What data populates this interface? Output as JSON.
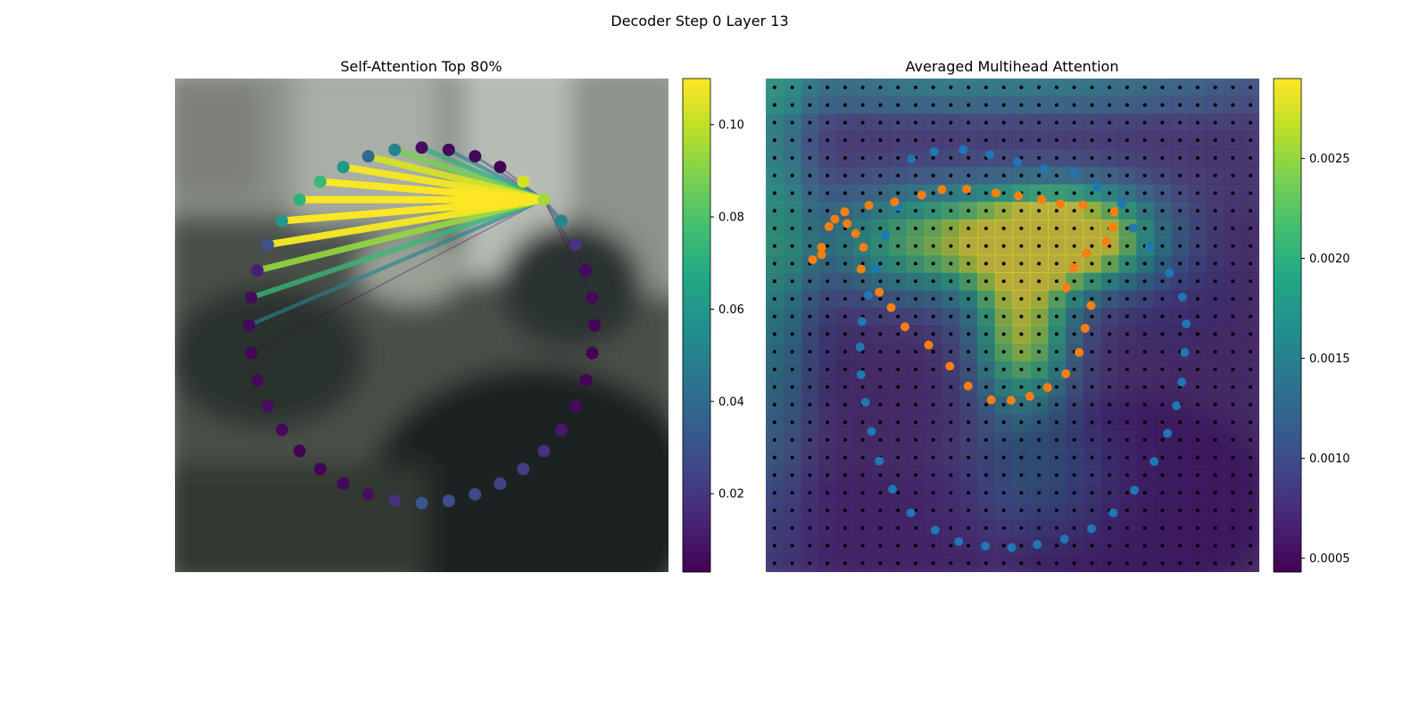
{
  "figure": {
    "suptitle": "Decoder Step 0 Layer 13"
  },
  "chart_data": [
    {
      "type": "scatter",
      "title": "Self-Attention Top 80%",
      "background": "blurred photograph of an indoor scene (a person in dark clothing on the right)",
      "points_ring": {
        "count": 40,
        "center": [
          0.5,
          0.5
        ],
        "radius": [
          0.35,
          0.36
        ],
        "colors_by_index": [
          0.103,
          0.095,
          0.052,
          0.019,
          0.006,
          0.005,
          0.004,
          0.003,
          0.004,
          0.006,
          0.01,
          0.018,
          0.022,
          0.024,
          0.026,
          0.028,
          0.032,
          0.018,
          0.007,
          0.005,
          0.004,
          0.003,
          0.005,
          0.007,
          0.005,
          0.004,
          0.005,
          0.006,
          0.012,
          0.03,
          0.06,
          0.072,
          0.075,
          0.06,
          0.04,
          0.05,
          0.007,
          0.005,
          0.005,
          0.004
        ],
        "source_index": 1,
        "source_value": 0.069
      },
      "edges_from_source": [
        {
          "to": 25,
          "weight": 0.003
        },
        {
          "to": 26,
          "weight": 0.05
        },
        {
          "to": 27,
          "weight": 0.074
        },
        {
          "to": 28,
          "weight": 0.093
        },
        {
          "to": 29,
          "weight": 0.108
        },
        {
          "to": 30,
          "weight": 0.11
        },
        {
          "to": 31,
          "weight": 0.11
        },
        {
          "to": 32,
          "weight": 0.11
        },
        {
          "to": 33,
          "weight": 0.108
        },
        {
          "to": 34,
          "weight": 0.103
        },
        {
          "to": 35,
          "weight": 0.088
        },
        {
          "to": 36,
          "weight": 0.072
        },
        {
          "to": 37,
          "weight": 0.05
        },
        {
          "to": 38,
          "weight": 0.025
        },
        {
          "to": 39,
          "weight": 0.008
        },
        {
          "to": 5,
          "weight": 0.006
        },
        {
          "to": 4,
          "weight": 0.01
        },
        {
          "to": 2,
          "weight": 0.04
        }
      ],
      "colorbar": {
        "cmap": "viridis",
        "range": [
          0.003,
          0.11
        ],
        "ticks": [
          0.02,
          0.04,
          0.06,
          0.08,
          0.1
        ],
        "tick_labels": [
          "0.02",
          "0.04",
          "0.06",
          "0.08",
          "0.10"
        ]
      }
    },
    {
      "type": "heatmap",
      "title": "Averaged Multihead Attention",
      "grid_size": 28,
      "heat_blobs": [
        {
          "cx": 0.38,
          "cy": 0.33,
          "sx": 0.2,
          "sy": 0.08,
          "amp": 0.0018
        },
        {
          "cx": 0.62,
          "cy": 0.32,
          "sx": 0.12,
          "sy": 0.07,
          "amp": 0.0022
        },
        {
          "cx": 0.52,
          "cy": 0.52,
          "sx": 0.07,
          "sy": 0.1,
          "amp": 0.002
        },
        {
          "cx": 0.02,
          "cy": 0.3,
          "sx": 0.05,
          "sy": 0.4,
          "amp": 0.001
        },
        {
          "cx": 0.45,
          "cy": 0.02,
          "sx": 0.4,
          "sy": 0.04,
          "amp": 0.0009
        },
        {
          "cx": 0.55,
          "cy": 0.8,
          "sx": 0.1,
          "sy": 0.1,
          "amp": 0.0006
        }
      ],
      "heat_base": 0.0006,
      "blue_points": [
        [
          0.295,
          0.163
        ],
        [
          0.341,
          0.148
        ],
        [
          0.4,
          0.144
        ],
        [
          0.454,
          0.154
        ],
        [
          0.51,
          0.169
        ],
        [
          0.565,
          0.183
        ],
        [
          0.625,
          0.192
        ],
        [
          0.671,
          0.219
        ],
        [
          0.721,
          0.254
        ],
        [
          0.744,
          0.303
        ],
        [
          0.777,
          0.341
        ],
        [
          0.818,
          0.394
        ],
        [
          0.844,
          0.443
        ],
        [
          0.852,
          0.497
        ],
        [
          0.849,
          0.555
        ],
        [
          0.843,
          0.615
        ],
        [
          0.832,
          0.663
        ],
        [
          0.814,
          0.719
        ],
        [
          0.787,
          0.776
        ],
        [
          0.747,
          0.834
        ],
        [
          0.704,
          0.88
        ],
        [
          0.66,
          0.912
        ],
        [
          0.605,
          0.933
        ],
        [
          0.55,
          0.944
        ],
        [
          0.498,
          0.95
        ],
        [
          0.445,
          0.947
        ],
        [
          0.391,
          0.938
        ],
        [
          0.343,
          0.915
        ],
        [
          0.294,
          0.88
        ],
        [
          0.257,
          0.832
        ],
        [
          0.23,
          0.775
        ],
        [
          0.214,
          0.715
        ],
        [
          0.202,
          0.656
        ],
        [
          0.193,
          0.6
        ],
        [
          0.191,
          0.544
        ],
        [
          0.195,
          0.492
        ],
        [
          0.208,
          0.439
        ],
        [
          0.222,
          0.386
        ],
        [
          0.242,
          0.318
        ],
        [
          0.268,
          0.26
        ]
      ],
      "orange_points": [
        [
          0.113,
          0.342
        ],
        [
          0.128,
          0.3
        ],
        [
          0.16,
          0.27
        ],
        [
          0.209,
          0.257
        ],
        [
          0.261,
          0.25
        ],
        [
          0.316,
          0.236
        ],
        [
          0.357,
          0.225
        ],
        [
          0.407,
          0.224
        ],
        [
          0.466,
          0.232
        ],
        [
          0.512,
          0.238
        ],
        [
          0.559,
          0.245
        ],
        [
          0.597,
          0.254
        ],
        [
          0.643,
          0.256
        ],
        [
          0.706,
          0.27
        ],
        [
          0.703,
          0.302
        ],
        [
          0.69,
          0.33
        ],
        [
          0.65,
          0.354
        ],
        [
          0.624,
          0.383
        ],
        [
          0.609,
          0.424
        ],
        [
          0.659,
          0.46
        ],
        [
          0.647,
          0.506
        ],
        [
          0.635,
          0.555
        ],
        [
          0.608,
          0.598
        ],
        [
          0.571,
          0.626
        ],
        [
          0.535,
          0.644
        ],
        [
          0.497,
          0.652
        ],
        [
          0.457,
          0.651
        ],
        [
          0.41,
          0.623
        ],
        [
          0.373,
          0.583
        ],
        [
          0.33,
          0.54
        ],
        [
          0.282,
          0.503
        ],
        [
          0.254,
          0.464
        ],
        [
          0.23,
          0.433
        ],
        [
          0.193,
          0.386
        ],
        [
          0.198,
          0.342
        ],
        [
          0.182,
          0.314
        ],
        [
          0.165,
          0.294
        ],
        [
          0.14,
          0.285
        ],
        [
          0.113,
          0.357
        ],
        [
          0.095,
          0.367
        ]
      ],
      "colorbar": {
        "cmap": "viridis",
        "range": [
          0.00043,
          0.0029
        ],
        "ticks": [
          0.0005,
          0.001,
          0.0015,
          0.002,
          0.0025
        ],
        "tick_labels": [
          "0.0005",
          "0.0010",
          "0.0015",
          "0.0020",
          "0.0025"
        ]
      }
    }
  ],
  "colors": {
    "blue_points": "#1f77b4",
    "orange_points": "#ff7f0e",
    "grid_dots": "#000000"
  }
}
